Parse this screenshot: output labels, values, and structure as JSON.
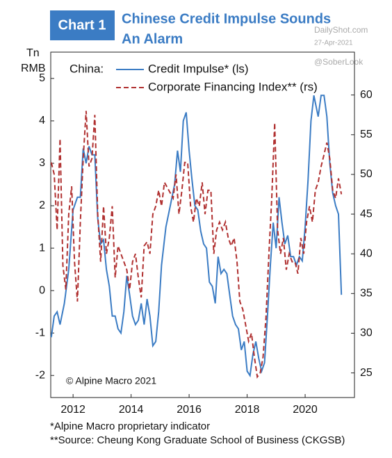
{
  "chart_data": {
    "type": "line",
    "header": "Chart 1",
    "title": [
      "Chinese Credit Impulse Sounds",
      "An Alarm"
    ],
    "watermark": [
      "DailyShot.com",
      "27-Apr-2021",
      "@SoberLook"
    ],
    "ylabel": [
      "Tn",
      "RMB"
    ],
    "legend_title": "China:",
    "annotation": "© Alpine Macro 2021",
    "footnotes": [
      "*Alpine Macro proprietary indicator",
      "**Source: Cheung Kong Graduate School of Business (CKGSB)"
    ],
    "xlim": [
      2011.23,
      2021.7
    ],
    "xticks": [
      2012,
      2014,
      2016,
      2018,
      2020
    ],
    "ylim": [
      -2.52,
      5.62
    ],
    "yticks": [
      -2,
      -1,
      0,
      1,
      2,
      3,
      4,
      5
    ],
    "y2lim": [
      21.9,
      65.4
    ],
    "y2ticks": [
      25,
      30,
      35,
      40,
      45,
      50,
      55,
      60
    ],
    "series": [
      {
        "name": "Credit Impulse* (ls)",
        "color": "#3b7cc4",
        "dashed": false,
        "axis": "y",
        "x": [
          2011.25,
          2011.35,
          2011.45,
          2011.55,
          2011.7,
          2011.85,
          2012.0,
          2012.15,
          2012.25,
          2012.35,
          2012.45,
          2012.55,
          2012.65,
          2012.75,
          2012.85,
          2012.95,
          2013.05,
          2013.15,
          2013.25,
          2013.35,
          2013.45,
          2013.55,
          2013.65,
          2013.75,
          2013.85,
          2013.95,
          2014.05,
          2014.15,
          2014.25,
          2014.35,
          2014.45,
          2014.55,
          2014.65,
          2014.75,
          2014.85,
          2014.95,
          2015.05,
          2015.2,
          2015.35,
          2015.5,
          2015.6,
          2015.7,
          2015.8,
          2015.9,
          2016.0,
          2016.1,
          2016.2,
          2016.3,
          2016.4,
          2016.5,
          2016.6,
          2016.7,
          2016.8,
          2016.9,
          2017.0,
          2017.1,
          2017.2,
          2017.3,
          2017.4,
          2017.5,
          2017.6,
          2017.7,
          2017.8,
          2017.9,
          2018.0,
          2018.1,
          2018.2,
          2018.3,
          2018.4,
          2018.5,
          2018.6,
          2018.7,
          2018.8,
          2018.9,
          2019.0,
          2019.1,
          2019.2,
          2019.3,
          2019.4,
          2019.5,
          2019.6,
          2019.7,
          2019.8,
          2019.9,
          2020.0,
          2020.1,
          2020.2,
          2020.3,
          2020.45,
          2020.55,
          2020.65,
          2020.75,
          2020.85,
          2020.95,
          2021.05,
          2021.15,
          2021.25
        ],
        "values": [
          -1.1,
          -0.6,
          -0.5,
          -0.8,
          -0.3,
          0.5,
          1.9,
          2.2,
          2.2,
          3.35,
          3.0,
          3.4,
          3.2,
          3.2,
          1.7,
          1.1,
          1.2,
          0.5,
          0.1,
          -0.6,
          -0.6,
          -0.9,
          -1.0,
          -0.5,
          0.35,
          -0.1,
          -0.6,
          -0.8,
          -0.7,
          -0.3,
          -0.8,
          -0.2,
          -0.6,
          -1.3,
          -1.2,
          -0.5,
          0.6,
          1.5,
          2.0,
          2.5,
          3.3,
          2.8,
          4.0,
          4.2,
          3.3,
          2.6,
          2.0,
          1.9,
          1.4,
          1.1,
          1.0,
          0.2,
          0.1,
          -0.3,
          0.8,
          0.4,
          0.5,
          0.4,
          -0.1,
          -0.6,
          -0.8,
          -0.9,
          -1.4,
          -1.2,
          -1.9,
          -2.0,
          -1.5,
          -1.2,
          -1.6,
          -1.9,
          -1.7,
          -0.6,
          0.6,
          1.6,
          1.0,
          2.2,
          1.6,
          1.1,
          1.3,
          0.8,
          0.8,
          0.6,
          0.8,
          0.7,
          1.5,
          2.6,
          4.0,
          4.6,
          4.1,
          4.6,
          4.6,
          4.1,
          3.0,
          2.3,
          2.0,
          1.8,
          -0.1
        ]
      },
      {
        "name": "Corporate Financing Index** (rs)",
        "color": "#b03030",
        "dashed": true,
        "axis": "y2",
        "x": [
          2011.25,
          2011.35,
          2011.45,
          2011.55,
          2011.65,
          2011.75,
          2011.85,
          2011.95,
          2012.05,
          2012.15,
          2012.25,
          2012.35,
          2012.45,
          2012.55,
          2012.65,
          2012.75,
          2012.85,
          2012.95,
          2013.05,
          2013.15,
          2013.25,
          2013.35,
          2013.45,
          2013.55,
          2013.65,
          2013.75,
          2013.85,
          2013.95,
          2014.05,
          2014.15,
          2014.25,
          2014.35,
          2014.45,
          2014.55,
          2014.65,
          2014.75,
          2014.85,
          2014.95,
          2015.05,
          2015.15,
          2015.3,
          2015.45,
          2015.55,
          2015.65,
          2015.75,
          2015.85,
          2015.95,
          2016.05,
          2016.15,
          2016.25,
          2016.35,
          2016.45,
          2016.55,
          2016.65,
          2016.75,
          2016.85,
          2016.95,
          2017.05,
          2017.15,
          2017.25,
          2017.35,
          2017.45,
          2017.55,
          2017.65,
          2017.75,
          2017.85,
          2017.95,
          2018.05,
          2018.15,
          2018.25,
          2018.35,
          2018.45,
          2018.55,
          2018.65,
          2018.75,
          2018.85,
          2018.95,
          2019.05,
          2019.15,
          2019.25,
          2019.35,
          2019.45,
          2019.55,
          2019.65,
          2019.75,
          2019.85,
          2019.95,
          2020.05,
          2020.15,
          2020.25,
          2020.35,
          2020.45,
          2020.55,
          2020.65,
          2020.75,
          2020.85,
          2020.95,
          2021.05,
          2021.15,
          2021.25
        ],
        "values": [
          51.5,
          50,
          43,
          54.5,
          38.5,
          35.5,
          45,
          48.5,
          39,
          34,
          44,
          52,
          58,
          51,
          52,
          57.5,
          45,
          39,
          46,
          40,
          42,
          46,
          37,
          41,
          40,
          39,
          38,
          35.5,
          39,
          40,
          37,
          34.5,
          41,
          41.5,
          40,
          45,
          46,
          48,
          46,
          49,
          48,
          47,
          50,
          45,
          48,
          51.5,
          51.5,
          46,
          44,
          47,
          46,
          49,
          45,
          48,
          48,
          40,
          43,
          44,
          43,
          44,
          42,
          41,
          42,
          39,
          34,
          33,
          31,
          29,
          30,
          27,
          24.5,
          25,
          27,
          32,
          40,
          47,
          56.5,
          43,
          40,
          42,
          38,
          40,
          39,
          39,
          37.5,
          42,
          40,
          44,
          46,
          44,
          48,
          49,
          51,
          52.5,
          54,
          52,
          48,
          47,
          49.5,
          47.5
        ]
      }
    ]
  }
}
